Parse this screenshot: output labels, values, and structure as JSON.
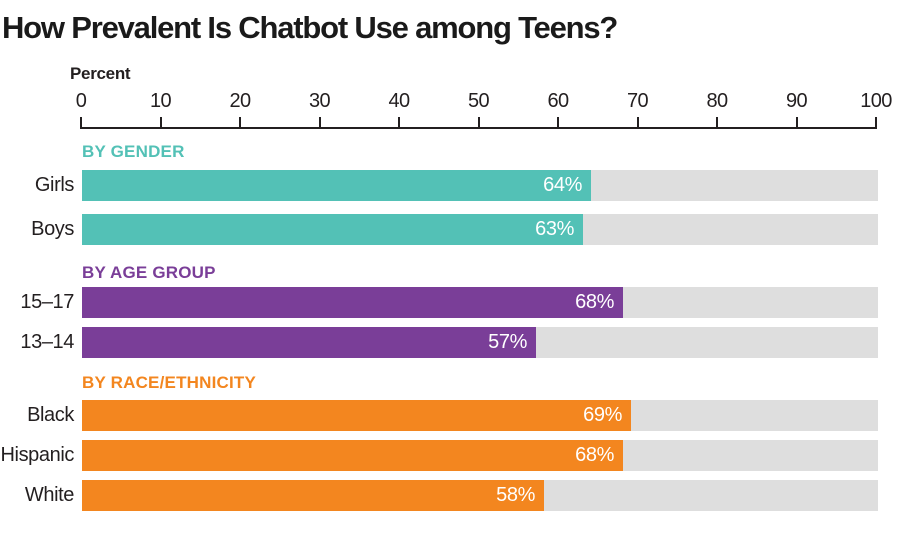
{
  "chart_data": {
    "type": "bar",
    "orientation": "horizontal",
    "title": "How Prevalent Is Chatbot Use among Teens?",
    "xlabel": "Percent",
    "xlim": [
      0,
      100
    ],
    "xticks": [
      0,
      10,
      20,
      30,
      40,
      50,
      60,
      70,
      80,
      90,
      100
    ],
    "grid": false,
    "legend": "none",
    "value_suffix": "%",
    "colors": {
      "gender": "#53c1b6",
      "age": "#7a3e98",
      "race": "#f3861f",
      "track": "#dedede",
      "axis": "#231f20",
      "title_text": "#1a1a1a",
      "label_text": "#231f20",
      "value_text": "#ffffff"
    },
    "groups": [
      {
        "label": "BY GENDER",
        "color_key": "gender",
        "rows": [
          {
            "label": "Girls",
            "value": 64,
            "value_label": "64%"
          },
          {
            "label": "Boys",
            "value": 63,
            "value_label": "63%"
          }
        ]
      },
      {
        "label": "BY AGE GROUP",
        "color_key": "age",
        "rows": [
          {
            "label": "15–17",
            "value": 68,
            "value_label": "68%"
          },
          {
            "label": "13–14",
            "value": 57,
            "value_label": "57%"
          }
        ]
      },
      {
        "label": "BY RACE/ETHNICITY",
        "color_key": "race",
        "rows": [
          {
            "label": "Black",
            "value": 69,
            "value_label": "69%"
          },
          {
            "label": "Hispanic",
            "value": 68,
            "value_label": "68%"
          },
          {
            "label": "White",
            "value": 58,
            "value_label": "58%"
          }
        ]
      }
    ]
  }
}
